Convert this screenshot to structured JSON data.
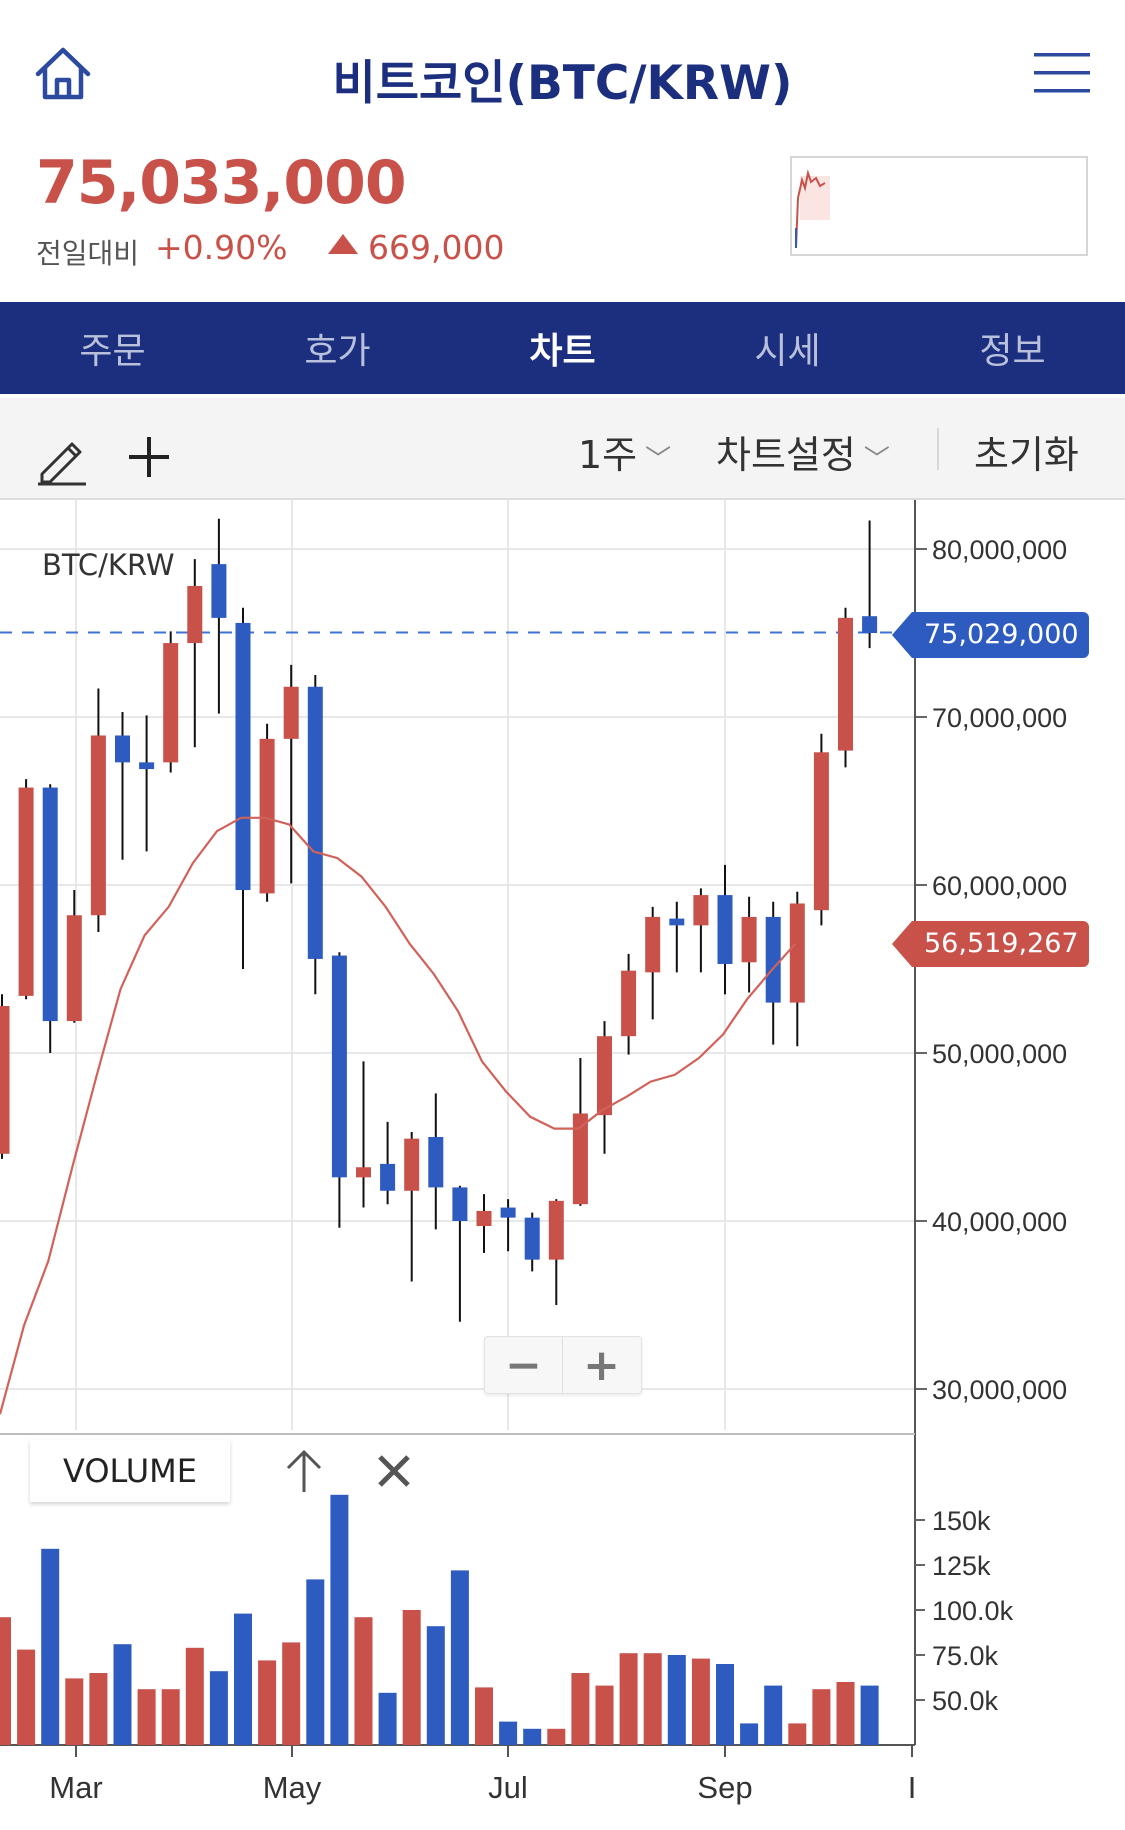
{
  "header": {
    "title": "비트코인(BTC/KRW)",
    "price": "75,033,000",
    "prev_label": "전일대비",
    "change_pct": "+0.90%",
    "change_abs": "669,000",
    "icons": {
      "home": "home-icon",
      "menu": "hamburger-menu-icon",
      "up": "triangle-up-icon"
    }
  },
  "tabs": [
    {
      "label": "주문",
      "active": false
    },
    {
      "label": "호가",
      "active": false
    },
    {
      "label": "차트",
      "active": true
    },
    {
      "label": "시세",
      "active": false
    },
    {
      "label": "정보",
      "active": false
    }
  ],
  "toolbar": {
    "period": "1주",
    "settings": "차트설정",
    "reset": "초기화",
    "icons": {
      "draw": "pencil-icon",
      "add": "plus-icon",
      "dropdown": "chevron-down-icon"
    }
  },
  "chart": {
    "symbol": "BTC/KRW",
    "last_price_tag": "75,029,000",
    "ma_tag": "56,519,267",
    "zoom_out": "−",
    "zoom_in": "+",
    "volume_label": "VOLUME",
    "colors": {
      "up": "#c8524a",
      "down": "#2d5bbf",
      "ma": "#d0625a",
      "grid": "#e8e8e8",
      "axis": "#333333"
    }
  },
  "chart_data": {
    "type": "candlestick",
    "interval": "1 week",
    "price_axis": {
      "ticks": [
        "80,000,000",
        "70,000,000",
        "60,000,000",
        "50,000,000",
        "40,000,000",
        "30,000,000"
      ],
      "ylim": [
        30000000,
        80000000
      ]
    },
    "volume_axis": {
      "ticks": [
        "150k",
        "125k",
        "100.0k",
        "75.0k",
        "50.0k"
      ]
    },
    "x_ticks": [
      "Mar",
      "May",
      "Jul",
      "Sep",
      "I"
    ],
    "candles": [
      {
        "o": 44000000,
        "c": 52800000,
        "h": 53500000,
        "l": 43700000
      },
      {
        "o": 53400000,
        "c": 65800000,
        "h": 66300000,
        "l": 53200000
      },
      {
        "o": 65800000,
        "c": 51900000,
        "h": 66000000,
        "l": 50000000
      },
      {
        "o": 51900000,
        "c": 58200000,
        "h": 59700000,
        "l": 51800000
      },
      {
        "o": 58200000,
        "c": 68900000,
        "h": 71700000,
        "l": 57200000
      },
      {
        "o": 68900000,
        "c": 67300000,
        "h": 70300000,
        "l": 61500000
      },
      {
        "o": 67300000,
        "c": 66900000,
        "h": 70100000,
        "l": 62000000
      },
      {
        "o": 67300000,
        "c": 74400000,
        "h": 75100000,
        "l": 66700000
      },
      {
        "o": 74400000,
        "c": 77800000,
        "h": 79400000,
        "l": 68200000
      },
      {
        "o": 79100000,
        "c": 75900000,
        "h": 81800000,
        "l": 70200000
      },
      {
        "o": 75600000,
        "c": 59700000,
        "h": 76500000,
        "l": 55000000
      },
      {
        "o": 59500000,
        "c": 68700000,
        "h": 69600000,
        "l": 59000000
      },
      {
        "o": 68700000,
        "c": 71800000,
        "h": 73100000,
        "l": 60100000
      },
      {
        "o": 71800000,
        "c": 55600000,
        "h": 72500000,
        "l": 53500000
      },
      {
        "o": 55800000,
        "c": 42600000,
        "h": 56000000,
        "l": 39600000
      },
      {
        "o": 42600000,
        "c": 43200000,
        "h": 49500000,
        "l": 40800000
      },
      {
        "o": 43400000,
        "c": 41800000,
        "h": 45900000,
        "l": 41000000
      },
      {
        "o": 41800000,
        "c": 44900000,
        "h": 45300000,
        "l": 36400000
      },
      {
        "o": 45000000,
        "c": 42000000,
        "h": 47600000,
        "l": 39500000
      },
      {
        "o": 42000000,
        "c": 40000000,
        "h": 42100000,
        "l": 34000000
      },
      {
        "o": 39700000,
        "c": 40600000,
        "h": 41600000,
        "l": 38100000
      },
      {
        "o": 40800000,
        "c": 40200000,
        "h": 41300000,
        "l": 38200000
      },
      {
        "o": 40200000,
        "c": 37700000,
        "h": 40500000,
        "l": 37000000
      },
      {
        "o": 37700000,
        "c": 41200000,
        "h": 41300000,
        "l": 35000000
      },
      {
        "o": 41000000,
        "c": 46400000,
        "h": 49700000,
        "l": 40900000
      },
      {
        "o": 46300000,
        "c": 51000000,
        "h": 51900000,
        "l": 44000000
      },
      {
        "o": 51000000,
        "c": 54900000,
        "h": 55900000,
        "l": 49900000
      },
      {
        "o": 54800000,
        "c": 58100000,
        "h": 58700000,
        "l": 52000000
      },
      {
        "o": 58000000,
        "c": 57600000,
        "h": 59000000,
        "l": 54800000
      },
      {
        "o": 57600000,
        "c": 59400000,
        "h": 59800000,
        "l": 54800000
      },
      {
        "o": 59400000,
        "c": 55300000,
        "h": 61200000,
        "l": 53500000
      },
      {
        "o": 55400000,
        "c": 58100000,
        "h": 59300000,
        "l": 53600000
      },
      {
        "o": 58100000,
        "c": 53000000,
        "h": 59000000,
        "l": 50500000
      },
      {
        "o": 53000000,
        "c": 58900000,
        "h": 59600000,
        "l": 50400000
      },
      {
        "o": 58500000,
        "c": 67900000,
        "h": 69000000,
        "l": 57600000
      },
      {
        "o": 68000000,
        "c": 75900000,
        "h": 76500000,
        "l": 67000000
      },
      {
        "o": 76000000,
        "c": 75000000,
        "h": 81700000,
        "l": 74100000
      }
    ],
    "volumes": [
      {
        "v": 96000,
        "up": true
      },
      {
        "v": 78000,
        "up": true
      },
      {
        "v": 134000,
        "up": false
      },
      {
        "v": 62000,
        "up": true
      },
      {
        "v": 65000,
        "up": true
      },
      {
        "v": 81000,
        "up": false
      },
      {
        "v": 56000,
        "up": true
      },
      {
        "v": 56000,
        "up": true
      },
      {
        "v": 79000,
        "up": true
      },
      {
        "v": 66000,
        "up": false
      },
      {
        "v": 98000,
        "up": false
      },
      {
        "v": 72000,
        "up": true
      },
      {
        "v": 82000,
        "up": true
      },
      {
        "v": 117000,
        "up": false
      },
      {
        "v": 164000,
        "up": false
      },
      {
        "v": 96000,
        "up": true
      },
      {
        "v": 54000,
        "up": false
      },
      {
        "v": 100000,
        "up": true
      },
      {
        "v": 91000,
        "up": false
      },
      {
        "v": 122000,
        "up": false
      },
      {
        "v": 57000,
        "up": true
      },
      {
        "v": 38000,
        "up": false
      },
      {
        "v": 34000,
        "up": false
      },
      {
        "v": 34000,
        "up": true
      },
      {
        "v": 65000,
        "up": true
      },
      {
        "v": 58000,
        "up": true
      },
      {
        "v": 76000,
        "up": true
      },
      {
        "v": 76000,
        "up": true
      },
      {
        "v": 75000,
        "up": false
      },
      {
        "v": 73000,
        "up": true
      },
      {
        "v": 70000,
        "up": false
      },
      {
        "v": 37000,
        "up": false
      },
      {
        "v": 58000,
        "up": false
      },
      {
        "v": 37000,
        "up": true
      },
      {
        "v": 56000,
        "up": true
      },
      {
        "v": 60000,
        "up": true
      },
      {
        "v": 58000,
        "up": false
      }
    ],
    "moving_average": [
      28500000,
      33800000,
      37600000,
      43200000,
      48600000,
      53800000,
      57000000,
      58700000,
      61300000,
      63200000,
      64000000,
      64000000,
      63600000,
      62000000,
      61600000,
      60500000,
      58700000,
      56500000,
      54700000,
      52500000,
      49500000,
      47700000,
      46200000,
      45500000,
      45500000,
      46600000,
      47400000,
      48300000,
      48700000,
      49700000,
      51100000,
      53200000,
      54900000,
      56500000
    ]
  }
}
